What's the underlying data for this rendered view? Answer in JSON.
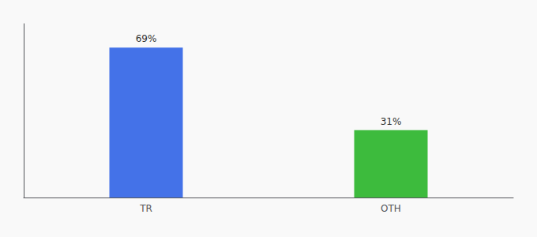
{
  "chart_data": {
    "type": "bar",
    "categories": [
      "TR",
      "OTH"
    ],
    "values": [
      69,
      31
    ],
    "value_labels": [
      "69%",
      "31%"
    ],
    "colors": [
      "#4472e8",
      "#3dbb3d"
    ],
    "ylim": [
      0,
      80
    ],
    "data_labels": true,
    "tick_labels": "x",
    "grid": false
  }
}
